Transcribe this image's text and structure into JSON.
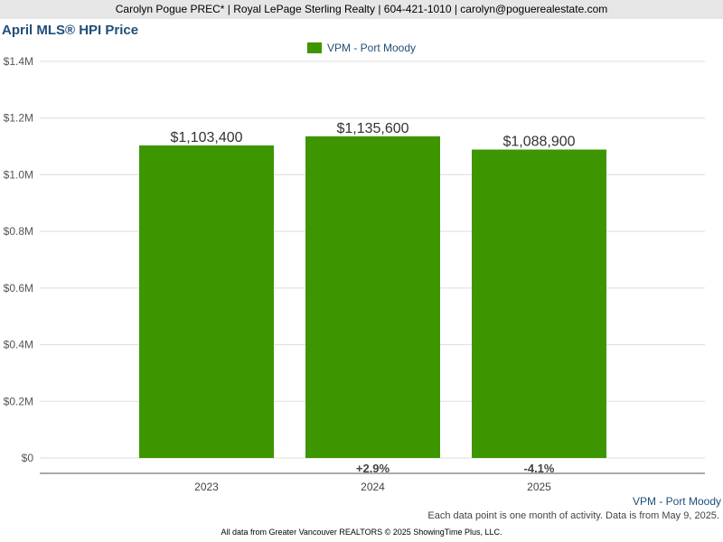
{
  "header": {
    "contact_line": "Carolyn Pogue PREC* | Royal LePage Sterling Realty | 604-421-1010 | carolyn@poguerealestate.com"
  },
  "colors": {
    "bar": "#3d9600",
    "title": "#1f4e79",
    "grid": "#dddddd",
    "axis": "#555555"
  },
  "chart_data": {
    "type": "bar",
    "title": "April MLS® HPI Price",
    "categories": [
      "2023",
      "2024",
      "2025"
    ],
    "series": [
      {
        "name": "VPM - Port Moody",
        "values": [
          1103400,
          1135600,
          1088900
        ]
      }
    ],
    "value_labels": [
      "$1,103,400",
      "$1,135,600",
      "$1,088,900"
    ],
    "change_labels": [
      "",
      "+2.9%",
      "-4.1%"
    ],
    "ylim": [
      0,
      1400000
    ],
    "y_ticks": [
      0,
      200000,
      400000,
      600000,
      800000,
      1000000,
      1200000,
      1400000
    ],
    "y_tick_labels": [
      "$0",
      "$0.2M",
      "$0.4M",
      "$0.6M",
      "$0.8M",
      "$1.0M",
      "$1.2M",
      "$1.4M"
    ],
    "grid": true,
    "legend_position": "top-center",
    "xlabel": "",
    "ylabel": ""
  },
  "footer": {
    "series_label": "VPM - Port Moody",
    "note": "Each data point is one month of activity. Data is from May 9, 2025.",
    "source": "All data from Greater Vancouver REALTORS © 2025 ShowingTime Plus, LLC."
  }
}
